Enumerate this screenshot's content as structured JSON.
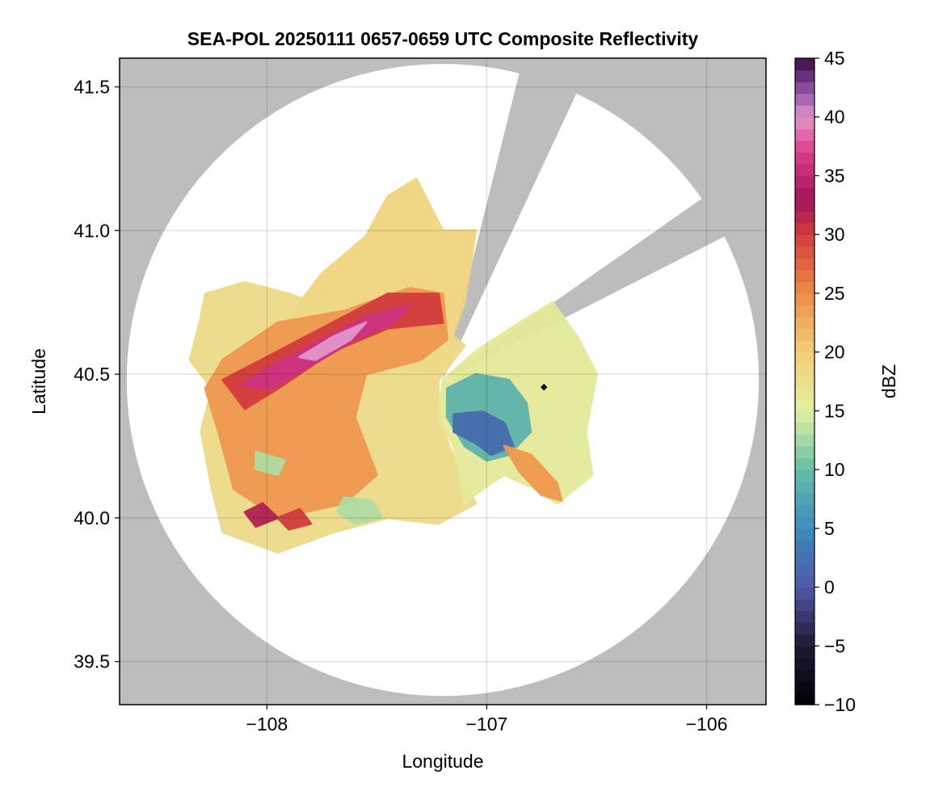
{
  "chart_data": {
    "type": "heatmap",
    "title": "SEA-POL 20250111 0657-0659 UTC Composite Reflectivity",
    "xlabel": "Longitude",
    "ylabel": "Latitude",
    "xlim": [
      -108.67,
      -105.73
    ],
    "ylim": [
      39.35,
      41.6
    ],
    "xticks": [
      -108,
      -107,
      -106
    ],
    "xtick_labels": [
      "−108",
      "−107",
      "−106"
    ],
    "yticks": [
      39.5,
      40.0,
      40.5,
      41.0,
      41.5
    ],
    "ytick_labels": [
      "39.5",
      "40.0",
      "40.5",
      "41.0",
      "41.5"
    ],
    "grid": true,
    "radar": {
      "center": [
        -107.2,
        40.48
      ],
      "max_range_lat_deg": 1.1,
      "blocked_sectors_deg_from_north": [
        [
          14,
          25
        ],
        [
          55,
          63
        ]
      ]
    },
    "marker": {
      "lon": -106.74,
      "lat": 40.455
    },
    "colorbar": {
      "label": "dBZ",
      "vmin": -10,
      "vmax": 45,
      "ticks": [
        -10,
        -5,
        0,
        5,
        10,
        15,
        20,
        25,
        30,
        35,
        40,
        45
      ],
      "tick_labels": [
        "−10",
        "−5",
        "0",
        "5",
        "10",
        "15",
        "20",
        "25",
        "30",
        "35",
        "40",
        "45"
      ],
      "levels": 55
    },
    "echo_regions": [
      {
        "name": "north-plume-light",
        "dbz": 19,
        "points": [
          [
            -108.0,
            40.6
          ],
          [
            -107.75,
            40.85
          ],
          [
            -107.55,
            40.98
          ],
          [
            -107.45,
            41.12
          ],
          [
            -107.32,
            41.18
          ],
          [
            -107.2,
            41.0
          ],
          [
            -107.05,
            41.0
          ],
          [
            -107.1,
            40.75
          ],
          [
            -107.22,
            40.5
          ],
          [
            -107.5,
            40.55
          ],
          [
            -107.8,
            40.55
          ]
        ]
      },
      {
        "name": "main-shield-light",
        "dbz": 18,
        "points": [
          [
            -108.28,
            40.78
          ],
          [
            -108.1,
            40.82
          ],
          [
            -107.9,
            40.78
          ],
          [
            -107.6,
            40.7
          ],
          [
            -107.3,
            40.72
          ],
          [
            -107.1,
            40.6
          ],
          [
            -107.22,
            40.48
          ],
          [
            -107.22,
            40.35
          ],
          [
            -107.12,
            40.15
          ],
          [
            -107.05,
            40.05
          ],
          [
            -107.22,
            39.98
          ],
          [
            -107.45,
            40.0
          ],
          [
            -107.7,
            39.95
          ],
          [
            -107.95,
            39.88
          ],
          [
            -108.2,
            39.95
          ],
          [
            -108.25,
            40.1
          ],
          [
            -108.3,
            40.3
          ],
          [
            -108.25,
            40.45
          ],
          [
            -108.35,
            40.55
          ],
          [
            -108.3,
            40.7
          ]
        ]
      },
      {
        "name": "main-shield-orange",
        "dbz": 24,
        "points": [
          [
            -108.2,
            40.55
          ],
          [
            -107.95,
            40.68
          ],
          [
            -107.65,
            40.72
          ],
          [
            -107.35,
            40.8
          ],
          [
            -107.2,
            40.78
          ],
          [
            -107.18,
            40.62
          ],
          [
            -107.3,
            40.55
          ],
          [
            -107.55,
            40.5
          ],
          [
            -107.6,
            40.35
          ],
          [
            -107.5,
            40.15
          ],
          [
            -107.65,
            40.05
          ],
          [
            -107.95,
            40.0
          ],
          [
            -108.15,
            40.1
          ],
          [
            -108.22,
            40.3
          ],
          [
            -108.28,
            40.45
          ]
        ]
      },
      {
        "name": "band-red",
        "dbz": 30,
        "points": [
          [
            -108.2,
            40.48
          ],
          [
            -107.95,
            40.58
          ],
          [
            -107.7,
            40.68
          ],
          [
            -107.45,
            40.78
          ],
          [
            -107.22,
            40.78
          ],
          [
            -107.2,
            40.68
          ],
          [
            -107.45,
            40.66
          ],
          [
            -107.7,
            40.58
          ],
          [
            -107.95,
            40.45
          ],
          [
            -108.1,
            40.38
          ]
        ]
      },
      {
        "name": "band-core-magenta",
        "dbz": 36,
        "points": [
          [
            -108.12,
            40.46
          ],
          [
            -107.95,
            40.54
          ],
          [
            -107.75,
            40.62
          ],
          [
            -107.55,
            40.7
          ],
          [
            -107.35,
            40.74
          ],
          [
            -107.42,
            40.68
          ],
          [
            -107.6,
            40.62
          ],
          [
            -107.8,
            40.53
          ],
          [
            -107.98,
            40.45
          ]
        ]
      },
      {
        "name": "band-peak-pink",
        "dbz": 40,
        "points": [
          [
            -107.85,
            40.56
          ],
          [
            -107.7,
            40.63
          ],
          [
            -107.55,
            40.68
          ],
          [
            -107.62,
            40.62
          ],
          [
            -107.78,
            40.55
          ]
        ]
      },
      {
        "name": "south-cell-1",
        "dbz": 32,
        "points": [
          [
            -108.1,
            40.02
          ],
          [
            -108.02,
            40.05
          ],
          [
            -107.95,
            40.0
          ],
          [
            -108.05,
            39.97
          ]
        ]
      },
      {
        "name": "south-cell-2",
        "dbz": 30,
        "points": [
          [
            -107.95,
            40.0
          ],
          [
            -107.85,
            40.03
          ],
          [
            -107.8,
            39.98
          ],
          [
            -107.9,
            39.96
          ]
        ]
      },
      {
        "name": "south-green-patch",
        "dbz": 13,
        "points": [
          [
            -107.65,
            40.07
          ],
          [
            -107.52,
            40.06
          ],
          [
            -107.48,
            40.0
          ],
          [
            -107.6,
            39.98
          ],
          [
            -107.68,
            40.02
          ]
        ]
      },
      {
        "name": "west-green-patch",
        "dbz": 13,
        "points": [
          [
            -108.05,
            40.23
          ],
          [
            -107.92,
            40.2
          ],
          [
            -107.95,
            40.15
          ],
          [
            -108.05,
            40.17
          ]
        ]
      },
      {
        "name": "east-echo-light",
        "dbz": 16,
        "points": [
          [
            -107.2,
            40.48
          ],
          [
            -107.05,
            40.58
          ],
          [
            -106.85,
            40.68
          ],
          [
            -106.7,
            40.75
          ],
          [
            -106.58,
            40.62
          ],
          [
            -106.5,
            40.5
          ],
          [
            -106.55,
            40.3
          ],
          [
            -106.52,
            40.15
          ],
          [
            -106.68,
            40.05
          ],
          [
            -106.78,
            40.1
          ],
          [
            -106.92,
            40.15
          ],
          [
            -107.02,
            40.1
          ],
          [
            -107.1,
            40.05
          ],
          [
            -107.15,
            40.25
          ],
          [
            -107.22,
            40.35
          ]
        ]
      },
      {
        "name": "east-echo-teal",
        "dbz": 9,
        "points": [
          [
            -107.18,
            40.45
          ],
          [
            -107.05,
            40.5
          ],
          [
            -106.9,
            40.48
          ],
          [
            -106.82,
            40.4
          ],
          [
            -106.8,
            40.3
          ],
          [
            -106.9,
            40.22
          ],
          [
            -107.0,
            40.2
          ],
          [
            -107.1,
            40.25
          ],
          [
            -107.18,
            40.35
          ]
        ]
      },
      {
        "name": "east-echo-blue",
        "dbz": 2,
        "points": [
          [
            -107.15,
            40.36
          ],
          [
            -107.02,
            40.37
          ],
          [
            -106.92,
            40.33
          ],
          [
            -106.88,
            40.25
          ],
          [
            -106.98,
            40.22
          ],
          [
            -107.05,
            40.26
          ],
          [
            -107.15,
            40.3
          ]
        ]
      },
      {
        "name": "east-band-orange",
        "dbz": 24,
        "points": [
          [
            -106.92,
            40.25
          ],
          [
            -106.8,
            40.22
          ],
          [
            -106.68,
            40.12
          ],
          [
            -106.66,
            40.06
          ],
          [
            -106.75,
            40.08
          ],
          [
            -106.85,
            40.16
          ]
        ]
      }
    ]
  }
}
